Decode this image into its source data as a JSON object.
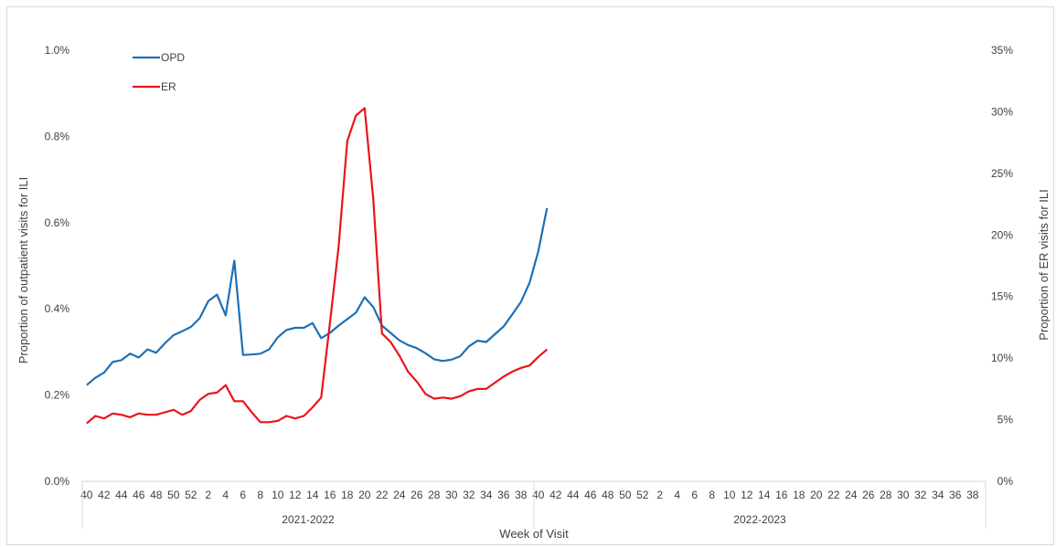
{
  "chart_data": {
    "type": "line",
    "xlabel": "Week of Visit",
    "ylabel_left": "Proportion of outpatient visits for ILI",
    "ylabel_right": "Proportion of ER visits for ILI",
    "y_left": {
      "min": 0,
      "max": 1.0,
      "ticks": [
        0,
        0.2,
        0.4,
        0.6,
        0.8,
        1.0
      ],
      "tick_labels": [
        "0.0%",
        "0.2%",
        "0.4%",
        "0.6%",
        "0.8%",
        "1.0%"
      ]
    },
    "y_right": {
      "min": 0,
      "max": 35,
      "ticks": [
        0,
        5,
        10,
        15,
        20,
        25,
        30,
        35
      ],
      "tick_labels": [
        "0%",
        "5%",
        "10%",
        "15%",
        "20%",
        "25%",
        "30%",
        "35%"
      ]
    },
    "seasons": [
      {
        "label": "2021-2022",
        "weeks": [
          40,
          41,
          42,
          43,
          44,
          45,
          46,
          47,
          48,
          49,
          50,
          51,
          52,
          1,
          2,
          3,
          4,
          5,
          6,
          7,
          8,
          9,
          10,
          11,
          12,
          13,
          14,
          15,
          16,
          17,
          18,
          19,
          20,
          21,
          22,
          23,
          24,
          25,
          26,
          27,
          28,
          29,
          30,
          31,
          32,
          33,
          34,
          35,
          36,
          37,
          38,
          39
        ]
      },
      {
        "label": "2022-2023",
        "weeks": [
          40,
          41,
          42,
          43,
          44,
          45,
          46,
          47,
          48,
          49,
          50,
          51,
          52,
          1,
          2,
          3,
          4,
          5,
          6,
          7,
          8,
          9,
          10,
          11,
          12,
          13,
          14,
          15,
          16,
          17,
          18,
          19,
          20,
          21,
          22,
          23,
          24,
          25,
          26,
          27,
          28,
          29,
          30,
          31,
          32,
          33,
          34,
          35,
          36,
          37,
          38,
          39
        ]
      }
    ],
    "legend": {
      "placement": "top-left"
    },
    "series": [
      {
        "name": "OPD",
        "axis": "left",
        "color": "#1f6fb5",
        "values": [
          0.223,
          0.24,
          0.252,
          0.277,
          0.281,
          0.296,
          0.287,
          0.306,
          0.298,
          0.32,
          0.339,
          0.348,
          0.358,
          0.378,
          0.418,
          0.433,
          0.385,
          0.512,
          0.293,
          0.294,
          0.296,
          0.306,
          0.334,
          0.351,
          0.356,
          0.356,
          0.367,
          0.332,
          0.344,
          0.361,
          0.376,
          0.391,
          0.427,
          0.404,
          0.361,
          0.344,
          0.327,
          0.316,
          0.309,
          0.297,
          0.283,
          0.279,
          0.282,
          0.29,
          0.313,
          0.326,
          0.323,
          0.341,
          0.359,
          0.387,
          0.416,
          0.461,
          0.534,
          0.634
        ]
      },
      {
        "name": "ER",
        "axis": "right",
        "color": "#e8151b",
        "values": [
          4.7,
          5.3,
          5.1,
          5.5,
          5.4,
          5.2,
          5.5,
          5.4,
          5.4,
          5.6,
          5.8,
          5.4,
          5.7,
          6.6,
          7.1,
          7.2,
          7.8,
          6.5,
          6.5,
          5.6,
          4.8,
          4.8,
          4.9,
          5.3,
          5.1,
          5.3,
          6.0,
          6.8,
          12.8,
          19.0,
          27.6,
          29.7,
          30.3,
          22.9,
          12.0,
          11.3,
          10.2,
          8.9,
          8.1,
          7.1,
          6.7,
          6.8,
          6.7,
          6.9,
          7.3,
          7.5,
          7.5,
          8.0,
          8.5,
          8.9,
          9.2,
          9.4,
          10.1,
          10.7
        ]
      }
    ]
  }
}
